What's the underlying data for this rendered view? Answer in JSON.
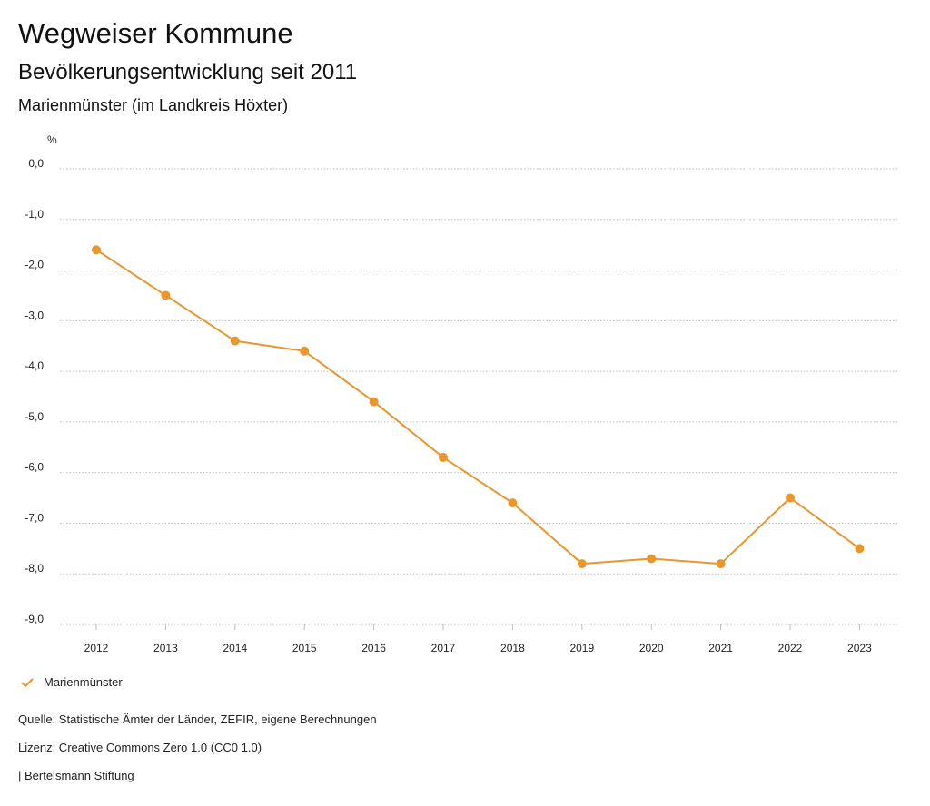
{
  "header": {
    "title": "Wegweiser Kommune",
    "subtitle": "Bevölkerungsentwicklung seit 2011",
    "region": "Marienmünster (im Landkreis Höxter)"
  },
  "chart_data": {
    "type": "line",
    "title": "Bevölkerungsentwicklung seit 2011",
    "xlabel": "",
    "ylabel": "%",
    "ylim": [
      -9.0,
      0.0
    ],
    "yticks": [
      "0,0",
      "-1,0",
      "-2,0",
      "-3,0",
      "-4,0",
      "-5,0",
      "-6,0",
      "-7,0",
      "-8,0",
      "-9,0"
    ],
    "ytick_values": [
      0,
      -1,
      -2,
      -3,
      -4,
      -5,
      -6,
      -7,
      -8,
      -9
    ],
    "categories": [
      "2012",
      "2013",
      "2014",
      "2015",
      "2016",
      "2017",
      "2018",
      "2019",
      "2020",
      "2021",
      "2022",
      "2023"
    ],
    "series": [
      {
        "name": "Marienmünster",
        "color": "#e8962e",
        "values": [
          -1.6,
          -2.5,
          -3.4,
          -3.6,
          -4.6,
          -5.7,
          -6.6,
          -7.8,
          -7.7,
          -7.8,
          -6.5,
          -7.5
        ]
      }
    ],
    "grid": true,
    "legend": "bottom-left"
  },
  "legend": {
    "label": "Marienmünster"
  },
  "footer": {
    "source": "Quelle: Statistische Ämter der Länder, ZEFIR, eigene Berechnungen",
    "license": "Lizenz: Creative Commons Zero 1.0 (CC0 1.0)",
    "publisher": "| Bertelsmann Stiftung"
  }
}
